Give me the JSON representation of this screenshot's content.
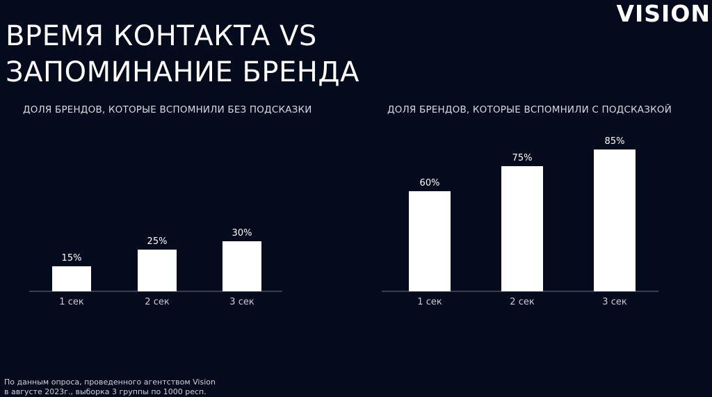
{
  "brand": "VISION",
  "title_line1": "ВРЕМЯ КОНТАКТА VS",
  "title_line2": "ЗАПОМИНАНИЕ БРЕНДА",
  "footnote_line1": "По данным опроса, проведенного агентством Vision",
  "footnote_line2": "в августе 2023г., выборка 3 группы по 1000 респ.",
  "colors": {
    "background": "#040b1c",
    "bar": "#ffffff",
    "text": "#ffffff"
  },
  "chart_data": [
    {
      "type": "bar",
      "title": "ДОЛЯ БРЕНДОВ, КОТОРЫЕ ВСПОМНИЛИ БЕЗ ПОДСКАЗКИ",
      "categories": [
        "1 сек",
        "2 сек",
        "3 сек"
      ],
      "values": [
        15,
        25,
        30
      ],
      "value_labels": [
        "15%",
        "25%",
        "30%"
      ],
      "unit": "%",
      "grid": false,
      "legend": "none"
    },
    {
      "type": "bar",
      "title": "ДОЛЯ БРЕНДОВ, КОТОРЫЕ ВСПОМНИЛИ С ПОДСКАЗКОЙ",
      "categories": [
        "1 сек",
        "2 сек",
        "3 сек"
      ],
      "values": [
        60,
        75,
        85
      ],
      "value_labels": [
        "60%",
        "75%",
        "85%"
      ],
      "unit": "%",
      "grid": false,
      "legend": "none"
    }
  ]
}
